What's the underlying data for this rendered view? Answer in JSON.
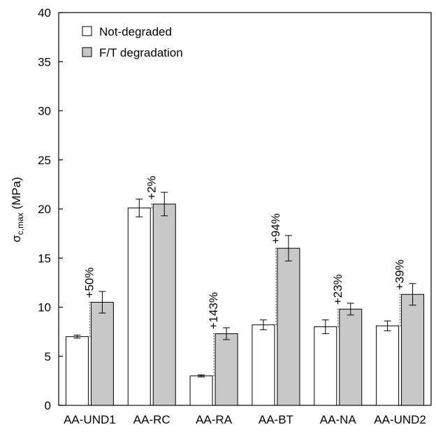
{
  "chart_data": {
    "type": "bar",
    "categories": [
      "AA-UND1",
      "AA-RC",
      "AA-RA",
      "AA-BT",
      "AA-NA",
      "AA-UND2"
    ],
    "series": [
      {
        "name": "Not-degraded",
        "color": "#ffffff",
        "values": [
          7.0,
          20.1,
          3.0,
          8.2,
          8.0,
          8.1
        ],
        "errors": [
          0.15,
          0.9,
          0.1,
          0.5,
          0.7,
          0.5
        ]
      },
      {
        "name": "F/T degradation",
        "color": "#c8c8c8",
        "values": [
          10.5,
          20.5,
          7.3,
          16.0,
          9.8,
          11.3
        ],
        "errors": [
          1.1,
          1.2,
          0.6,
          1.3,
          0.6,
          1.1
        ]
      }
    ],
    "annotations": [
      "+50%",
      "+2%",
      "+143%",
      "+94%",
      "+23%",
      "+39%"
    ],
    "ylabel_main": "σ",
    "ylabel_sub": "c,max",
    "ylabel_unit": " (MPa)",
    "ylim": [
      0,
      40
    ],
    "yticks": [
      0,
      5,
      10,
      15,
      20,
      25,
      30,
      35,
      40
    ],
    "grid": false,
    "legend_position": "top-left"
  }
}
